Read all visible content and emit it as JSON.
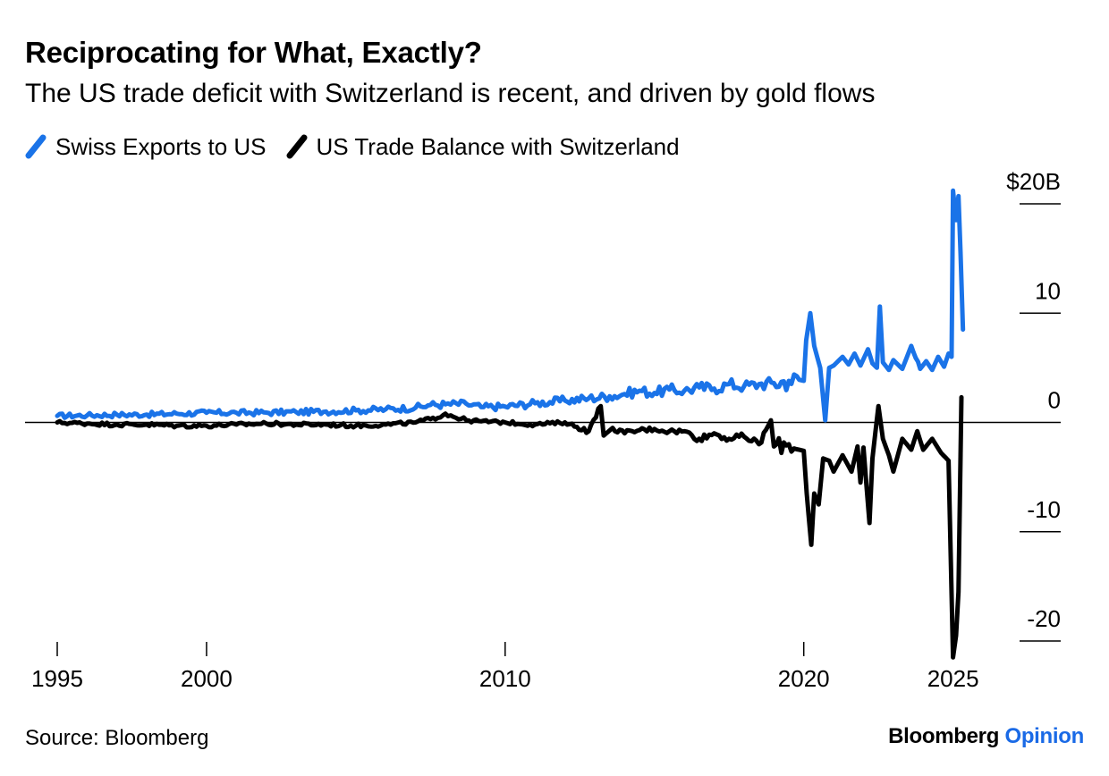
{
  "header": {
    "title": "Reciprocating for What, Exactly?",
    "subtitle": "The US trade deficit with Switzerland is recent, and driven by gold flows"
  },
  "legend": [
    {
      "label": "Swiss Exports to US",
      "color": "#1a73e8"
    },
    {
      "label": "US Trade Balance with Switzerland",
      "color": "#000000"
    }
  ],
  "footer": {
    "source": "Source: Bloomberg",
    "brand_main": "Bloomberg",
    "brand_accent": "Opinion"
  },
  "colors": {
    "exports": "#1a73e8",
    "balance": "#000000",
    "accent": "#1a6ae6"
  },
  "chart_data": {
    "type": "line",
    "title": "Reciprocating for What, Exactly?",
    "subtitle": "The US trade deficit with Switzerland is recent, and driven by gold flows",
    "x_axis": {
      "ticks": [
        "1995",
        "2000",
        "2010",
        "2020",
        "2025"
      ],
      "range": [
        1995,
        2025.4
      ]
    },
    "y_axis": {
      "ticks": [
        "$20B",
        "10",
        "0",
        "-10",
        "-20"
      ],
      "range": [
        -20,
        20
      ],
      "zero_line": true,
      "position": "right"
    },
    "legend_placement": "top-left",
    "grid": false,
    "series": [
      {
        "name": "Swiss Exports to US",
        "color": "#1a73e8",
        "points": [
          [
            1995.0,
            0.6
          ],
          [
            1996.0,
            0.65
          ],
          [
            1997.0,
            0.7
          ],
          [
            1998.0,
            0.72
          ],
          [
            1999.0,
            0.8
          ],
          [
            2000.0,
            0.88
          ],
          [
            2001.0,
            0.88
          ],
          [
            2002.0,
            0.9
          ],
          [
            2003.0,
            0.95
          ],
          [
            2004.0,
            1.0
          ],
          [
            2005.0,
            1.1
          ],
          [
            2006.0,
            1.2
          ],
          [
            2007.0,
            1.35
          ],
          [
            2007.5,
            1.6
          ],
          [
            2008.0,
            1.65
          ],
          [
            2008.7,
            1.7
          ],
          [
            2009.2,
            1.4
          ],
          [
            2010.0,
            1.45
          ],
          [
            2011.0,
            1.75
          ],
          [
            2012.0,
            2.0
          ],
          [
            2012.8,
            2.2
          ],
          [
            2013.5,
            2.4
          ],
          [
            2014.0,
            2.6
          ],
          [
            2014.5,
            2.9
          ],
          [
            2015.0,
            2.7
          ],
          [
            2015.5,
            3.0
          ],
          [
            2016.0,
            2.9
          ],
          [
            2016.5,
            3.2
          ],
          [
            2017.0,
            3.1
          ],
          [
            2017.5,
            3.5
          ],
          [
            2018.0,
            3.3
          ],
          [
            2018.5,
            3.5
          ],
          [
            2019.0,
            3.6
          ],
          [
            2019.5,
            3.8
          ],
          [
            2019.85,
            3.9
          ],
          [
            2020.0,
            3.8
          ],
          [
            2020.08,
            7.5
          ],
          [
            2020.22,
            10.0
          ],
          [
            2020.35,
            7.0
          ],
          [
            2020.55,
            5.0
          ],
          [
            2020.72,
            0.2
          ],
          [
            2020.85,
            5.0
          ],
          [
            2021.0,
            5.2
          ],
          [
            2021.3,
            6.0
          ],
          [
            2021.5,
            5.3
          ],
          [
            2021.7,
            6.3
          ],
          [
            2021.9,
            5.2
          ],
          [
            2022.0,
            5.8
          ],
          [
            2022.15,
            6.7
          ],
          [
            2022.3,
            5.4
          ],
          [
            2022.45,
            5.0
          ],
          [
            2022.55,
            10.6
          ],
          [
            2022.65,
            5.5
          ],
          [
            2022.85,
            4.8
          ],
          [
            2023.0,
            5.7
          ],
          [
            2023.3,
            4.9
          ],
          [
            2023.6,
            7.0
          ],
          [
            2023.9,
            4.9
          ],
          [
            2024.1,
            5.6
          ],
          [
            2024.3,
            4.8
          ],
          [
            2024.5,
            6.0
          ],
          [
            2024.7,
            5.1
          ],
          [
            2024.85,
            6.3
          ],
          [
            2024.95,
            6.0
          ],
          [
            2025.0,
            21.2
          ],
          [
            2025.1,
            18.5
          ],
          [
            2025.18,
            20.7
          ],
          [
            2025.25,
            15.5
          ],
          [
            2025.33,
            8.5
          ]
        ]
      },
      {
        "name": "US Trade Balance with Switzerland",
        "color": "#000000",
        "points": [
          [
            1995.0,
            0.0
          ],
          [
            1996.0,
            -0.1
          ],
          [
            1997.0,
            -0.2
          ],
          [
            1998.0,
            -0.2
          ],
          [
            1999.0,
            -0.3
          ],
          [
            2000.0,
            -0.3
          ],
          [
            2001.0,
            -0.2
          ],
          [
            2002.0,
            -0.1
          ],
          [
            2003.0,
            -0.2
          ],
          [
            2004.0,
            -0.2
          ],
          [
            2005.0,
            -0.3
          ],
          [
            2006.0,
            -0.2
          ],
          [
            2007.0,
            0.0
          ],
          [
            2007.5,
            0.3
          ],
          [
            2008.0,
            0.8
          ],
          [
            2008.7,
            0.2
          ],
          [
            2009.2,
            0.1
          ],
          [
            2010.0,
            0.0
          ],
          [
            2011.0,
            -0.2
          ],
          [
            2012.0,
            0.0
          ],
          [
            2012.8,
            -0.8
          ],
          [
            2013.2,
            1.5
          ],
          [
            2013.3,
            -1.2
          ],
          [
            2013.6,
            -0.5
          ],
          [
            2014.0,
            -1.0
          ],
          [
            2014.5,
            -0.7
          ],
          [
            2015.0,
            -0.6
          ],
          [
            2015.5,
            -0.8
          ],
          [
            2016.0,
            -0.8
          ],
          [
            2016.5,
            -1.5
          ],
          [
            2017.0,
            -1.0
          ],
          [
            2017.5,
            -1.5
          ],
          [
            2018.0,
            -1.3
          ],
          [
            2018.5,
            -2.0
          ],
          [
            2018.9,
            0.2
          ],
          [
            2019.0,
            -2.2
          ],
          [
            2019.5,
            -2.0
          ],
          [
            2019.85,
            -2.5
          ],
          [
            2020.0,
            -2.6
          ],
          [
            2020.1,
            -6.5
          ],
          [
            2020.25,
            -11.2
          ],
          [
            2020.35,
            -6.5
          ],
          [
            2020.5,
            -7.5
          ],
          [
            2020.65,
            -3.3
          ],
          [
            2020.85,
            -3.5
          ],
          [
            2021.0,
            -4.5
          ],
          [
            2021.3,
            -3.0
          ],
          [
            2021.6,
            -4.5
          ],
          [
            2021.8,
            -2.2
          ],
          [
            2021.9,
            -5.5
          ],
          [
            2022.0,
            -2.3
          ],
          [
            2022.2,
            -9.2
          ],
          [
            2022.3,
            -3.3
          ],
          [
            2022.5,
            1.5
          ],
          [
            2022.65,
            -1.5
          ],
          [
            2022.85,
            -3.0
          ],
          [
            2023.0,
            -4.5
          ],
          [
            2023.3,
            -1.5
          ],
          [
            2023.6,
            -2.5
          ],
          [
            2023.8,
            -0.8
          ],
          [
            2024.0,
            -2.5
          ],
          [
            2024.3,
            -1.5
          ],
          [
            2024.6,
            -2.8
          ],
          [
            2024.85,
            -3.5
          ],
          [
            2025.0,
            -21.5
          ],
          [
            2025.1,
            -19.5
          ],
          [
            2025.18,
            -15.5
          ],
          [
            2025.28,
            2.3
          ]
        ]
      }
    ]
  }
}
